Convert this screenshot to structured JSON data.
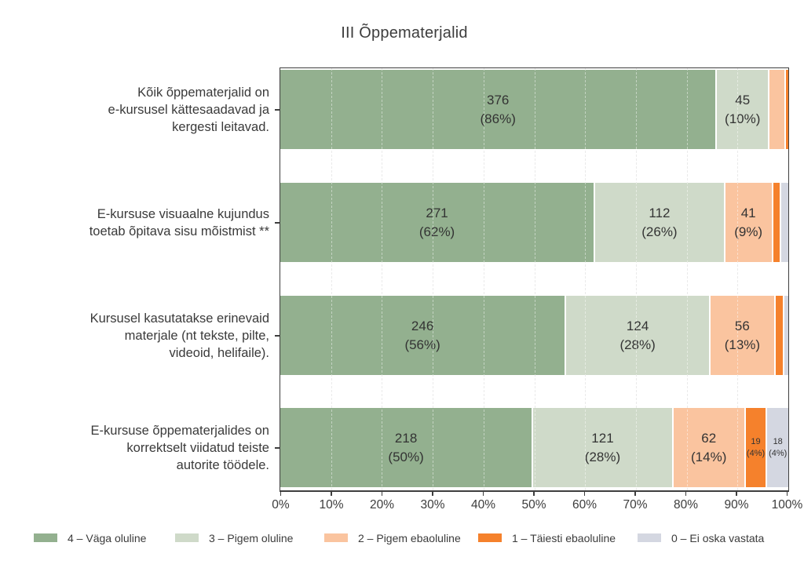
{
  "title": "III Õppematerjalid",
  "palette": {
    "green_dark": "#93B08F",
    "green_light": "#CFDAC9",
    "salmon": "#FAC49F",
    "orange": "#F5812C",
    "gray": "#D4D7E1",
    "axis": "#3e3e3e",
    "gridline": "#d9d9d9",
    "text": "#3a3a3a"
  },
  "chart_data": {
    "type": "bar",
    "orientation": "horizontal",
    "stacked": true,
    "title": "III Õppematerjalid",
    "xlabel": "",
    "ylabel": "",
    "xlim": [
      0,
      100
    ],
    "x_tick_labels": [
      "0%",
      "10%",
      "20%",
      "30%",
      "40%",
      "50%",
      "60%",
      "70%",
      "80%",
      "90%",
      "100%"
    ],
    "grid": "vertical-dashed",
    "legend_position": "bottom",
    "categories": [
      "Kõik õppematerjalid on e-kursusel kättesaadavad ja kergesti leitavad.",
      "E-kursuse visuaalne kujundus toetab õpitava sisu mõistmist **",
      "Kursusel kasutatakse erinevaid materjale (nt tekste, pilte, videoid, helifaile).",
      "E-kursuse õppematerjalides on korrektselt viidatud teiste autorite töödele."
    ],
    "series": [
      {
        "name": "4 – Väga oluline",
        "color": "#93B08F",
        "values": [
          376,
          271,
          246,
          218
        ],
        "pcts": [
          86,
          62,
          56,
          50
        ],
        "estimated": [
          false,
          false,
          false,
          false
        ]
      },
      {
        "name": "3 – Pigem oluline",
        "color": "#CFDAC9",
        "values": [
          45,
          112,
          124,
          121
        ],
        "pcts": [
          10,
          26,
          28,
          28
        ],
        "estimated": [
          false,
          false,
          false,
          false
        ]
      },
      {
        "name": "2 – Pigem ebaoluline",
        "color": "#FAC49F",
        "values": [
          14,
          41,
          56,
          62
        ],
        "pcts": [
          3,
          9,
          13,
          14
        ],
        "estimated": [
          true,
          false,
          false,
          false
        ]
      },
      {
        "name": "1 – Täiesti ebaoluline",
        "color": "#F5812C",
        "values": [
          2,
          7,
          8,
          19
        ],
        "pcts": [
          0.5,
          1.6,
          1.8,
          4
        ],
        "estimated": [
          true,
          true,
          true,
          false
        ]
      },
      {
        "name": "0 – Ei oska vastata",
        "color": "#D4D7E1",
        "values": [
          0,
          6,
          3,
          18
        ],
        "pcts": [
          0,
          1.4,
          0.7,
          4
        ],
        "estimated": [
          true,
          true,
          true,
          false
        ]
      }
    ]
  },
  "rows": [
    {
      "label_lines": [
        "Kõik õppematerjalid on",
        "e-kursusel kättesaadavad ja",
        "kergesti leitavad."
      ],
      "segments": [
        {
          "pct": 86.0,
          "line1": "376",
          "line2": "(86%)",
          "size": "normal"
        },
        {
          "pct": 10.3,
          "line1": "45",
          "line2": "(10%)",
          "size": "normal"
        },
        {
          "pct": 3.2,
          "line1": null,
          "line2": null,
          "size": "normal"
        },
        {
          "pct": 0.5,
          "line1": null,
          "line2": null,
          "size": "normal"
        },
        {
          "pct": 0,
          "line1": null,
          "line2": null,
          "size": "normal"
        }
      ]
    },
    {
      "label_lines": [
        "E-kursuse visuaalne kujundus",
        "toetab õpitava sisu mõistmist **"
      ],
      "segments": [
        {
          "pct": 62.0,
          "line1": "271",
          "line2": "(62%)",
          "size": "normal"
        },
        {
          "pct": 25.6,
          "line1": "112",
          "line2": "(26%)",
          "size": "normal"
        },
        {
          "pct": 9.4,
          "line1": "41",
          "line2": "(9%)",
          "size": "normal"
        },
        {
          "pct": 1.6,
          "line1": null,
          "line2": null,
          "size": "normal"
        },
        {
          "pct": 1.4,
          "line1": null,
          "line2": null,
          "size": "normal"
        }
      ]
    },
    {
      "label_lines": [
        "Kursusel kasutatakse erinevaid",
        "materjale (nt tekste, pilte,",
        "videoid, helifaile)."
      ],
      "segments": [
        {
          "pct": 56.3,
          "line1": "246",
          "line2": "(56%)",
          "size": "normal"
        },
        {
          "pct": 28.4,
          "line1": "124",
          "line2": "(28%)",
          "size": "normal"
        },
        {
          "pct": 12.8,
          "line1": "56",
          "line2": "(13%)",
          "size": "normal"
        },
        {
          "pct": 1.8,
          "line1": null,
          "line2": null,
          "size": "normal"
        },
        {
          "pct": 0.7,
          "line1": null,
          "line2": null,
          "size": "normal"
        }
      ]
    },
    {
      "label_lines": [
        "E-kursuse õppematerjalides on",
        "korrektselt viidatud teiste",
        "autorite töödele."
      ],
      "segments": [
        {
          "pct": 49.8,
          "line1": "218",
          "line2": "(50%)",
          "size": "normal"
        },
        {
          "pct": 27.6,
          "line1": "121",
          "line2": "(28%)",
          "size": "normal"
        },
        {
          "pct": 14.2,
          "line1": "62",
          "line2": "(14%)",
          "size": "normal"
        },
        {
          "pct": 4.3,
          "line1": "19",
          "line2": "(4%)",
          "size": "small"
        },
        {
          "pct": 4.1,
          "line1": "18",
          "line2": "(4%)",
          "size": "small"
        }
      ]
    }
  ],
  "x_axis": {
    "ticks": [
      "0%",
      "10%",
      "20%",
      "30%",
      "40%",
      "50%",
      "60%",
      "70%",
      "80%",
      "90%",
      "100%"
    ]
  },
  "legend": {
    "items": [
      {
        "label": "4 – Väga oluline",
        "color": "#93B08F"
      },
      {
        "label": "3 – Pigem oluline",
        "color": "#CFDAC9"
      },
      {
        "label": "2 – Pigem ebaoluline",
        "color": "#FAC49F"
      },
      {
        "label": "1 – Täiesti ebaoluline",
        "color": "#F5812C"
      },
      {
        "label": "0 – Ei oska vastata",
        "color": "#D4D7E1"
      }
    ]
  }
}
